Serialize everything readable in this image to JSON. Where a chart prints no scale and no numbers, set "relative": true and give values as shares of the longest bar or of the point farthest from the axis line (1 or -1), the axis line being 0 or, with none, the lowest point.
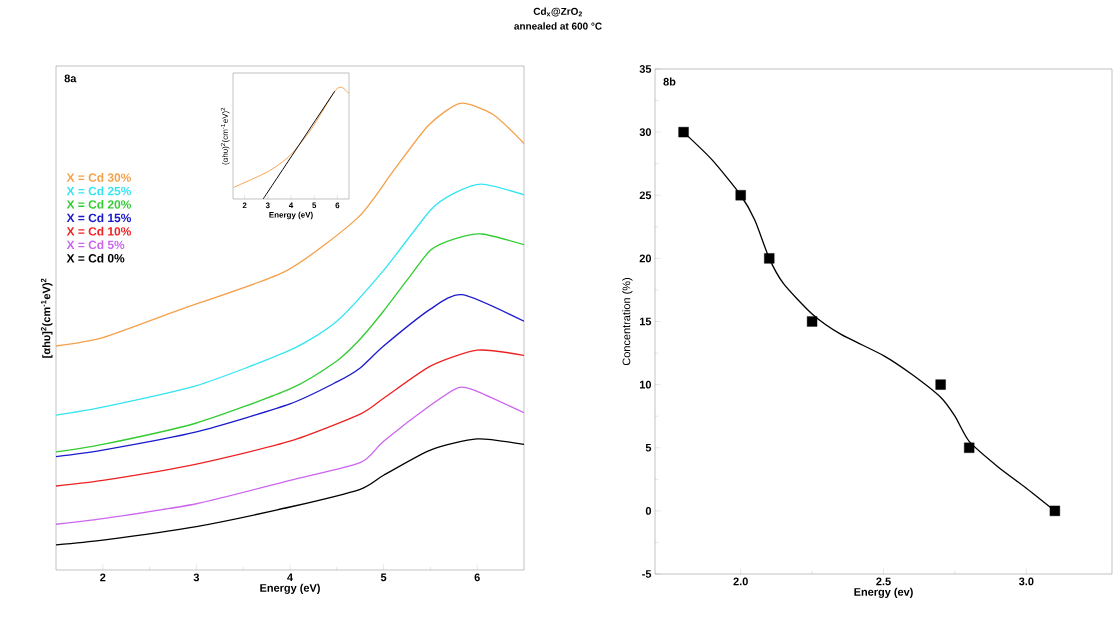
{
  "chart_data": [
    {
      "type": "line",
      "xlabel": "Energy (eV)",
      "ylabel": "[αhυ]$^{2}$(cm$^{-1}$eV)$^{2}$",
      "relative": true,
      "xlim": [
        1.5,
        6.5
      ],
      "xticks": [
        2,
        3,
        4,
        5,
        6
      ],
      "tick_labels": "x",
      "legend": "left",
      "annotations": [
        "8a"
      ],
      "series": [
        {
          "name": "X = Cd 30%",
          "color": "#f5a04a",
          "x": [
            1.5,
            2.0,
            2.81,
            3.95,
            4.72,
            5.1,
            5.48,
            5.82,
            6.17,
            6.5
          ],
          "values": [
            0.48,
            0.498,
            0.557,
            0.64,
            0.754,
            0.854,
            0.953,
            1.0,
            0.976,
            0.914
          ]
        },
        {
          "name": "X = Cd 25%",
          "color": "#33e5f0",
          "x": [
            1.5,
            2,
            3,
            4,
            4.5,
            5,
            5.5,
            5.75,
            6.05,
            6.5
          ],
          "values": [
            0.332,
            0.349,
            0.395,
            0.471,
            0.533,
            0.642,
            0.771,
            0.807,
            0.827,
            0.804
          ]
        },
        {
          "name": "X = Cd 20%",
          "color": "#33cc33",
          "x": [
            1.5,
            2,
            3,
            4,
            4.5,
            4.75,
            5,
            5.25,
            5.5,
            5.75,
            6.05,
            6.5
          ],
          "values": [
            0.253,
            0.269,
            0.315,
            0.388,
            0.448,
            0.495,
            0.555,
            0.621,
            0.685,
            0.709,
            0.72,
            0.697
          ]
        },
        {
          "name": "X = Cd 15%",
          "color": "#1a1acc",
          "x": [
            1.5,
            2,
            3,
            4,
            4.5,
            4.75,
            5,
            5.5,
            5.84,
            6.5
          ],
          "values": [
            0.243,
            0.257,
            0.296,
            0.356,
            0.403,
            0.433,
            0.48,
            0.559,
            0.59,
            0.533
          ]
        },
        {
          "name": "X = Cd 10%",
          "color": "#ee2222",
          "x": [
            1.5,
            2,
            3,
            4,
            4.75,
            5,
            5.5,
            6,
            6.5
          ],
          "values": [
            0.18,
            0.192,
            0.227,
            0.276,
            0.334,
            0.368,
            0.437,
            0.471,
            0.46
          ]
        },
        {
          "name": "X = Cd 5%",
          "color": "#cc66ee",
          "x": [
            1.5,
            2,
            3,
            4,
            4.75,
            5,
            5.5,
            5.8,
            6,
            6.5
          ],
          "values": [
            0.098,
            0.11,
            0.142,
            0.192,
            0.23,
            0.276,
            0.353,
            0.391,
            0.383,
            0.337
          ]
        },
        {
          "name": "X = Cd 0%",
          "color": "#000000",
          "x": [
            1.5,
            2,
            3,
            4,
            4.75,
            5,
            5.5,
            6,
            6.5
          ],
          "values": [
            0.054,
            0.064,
            0.093,
            0.135,
            0.173,
            0.203,
            0.257,
            0.281,
            0.269
          ]
        }
      ]
    },
    {
      "type": "line",
      "xlabel": "Energy (eV)",
      "ylabel": "(αhυ)$^{2}$(cm$^{-1}$eV)$^{2}$",
      "relative": true,
      "xlim": [
        1.5,
        6.5
      ],
      "xticks": [
        2,
        3,
        4,
        5,
        6
      ],
      "tick_labels": "x",
      "series": [
        {
          "color": "#f5a04a",
          "x": [
            1.52,
            3.03,
            3.96,
            4.89,
            5.89,
            6.2,
            6.5
          ],
          "values": [
            0.103,
            0.248,
            0.391,
            0.631,
            0.968,
            1.0,
            0.945
          ]
        },
        {
          "color": "#000000",
          "x": [
            2.8,
            5.89
          ],
          "values": [
            0,
            0.968
          ]
        }
      ]
    },
    {
      "type": "scatter",
      "title": "Cd$_{x}$@ZrO$_{2}$",
      "subtitle": "annealed at 600 °C",
      "xlabel": "Energy (ev)",
      "ylabel": "Concentration (%)",
      "xlim": [
        1.7,
        3.3
      ],
      "xticks": [
        {
          "value": 2.0,
          "label": "2.0"
        },
        {
          "value": 2.5,
          "label": "2.5"
        },
        {
          "value": 3.0,
          "label": "3.0"
        }
      ],
      "ylim": [
        -5,
        35
      ],
      "yticks": [
        -5,
        0,
        5,
        10,
        15,
        20,
        25,
        30,
        35
      ],
      "annotations": [
        "8b"
      ],
      "series": [
        {
          "color": "#000000",
          "marker": "square",
          "x": [
            1.8,
            2.0,
            2.1,
            2.25,
            2.7,
            2.8,
            3.1
          ],
          "values": [
            30,
            25,
            20,
            15,
            10,
            5,
            0
          ]
        },
        {
          "type": "line",
          "color": "#000000",
          "x": [
            1.8,
            1.9,
            2.0,
            2.05,
            2.1,
            2.15,
            2.25,
            2.35,
            2.5,
            2.6,
            2.7,
            2.75,
            2.8,
            2.9,
            3.0,
            3.1
          ],
          "values": [
            30,
            27.8,
            25,
            23,
            20,
            18,
            15.6,
            14,
            12.3,
            10.8,
            9,
            7.5,
            5.5,
            3.5,
            1.8,
            0
          ]
        }
      ]
    }
  ]
}
